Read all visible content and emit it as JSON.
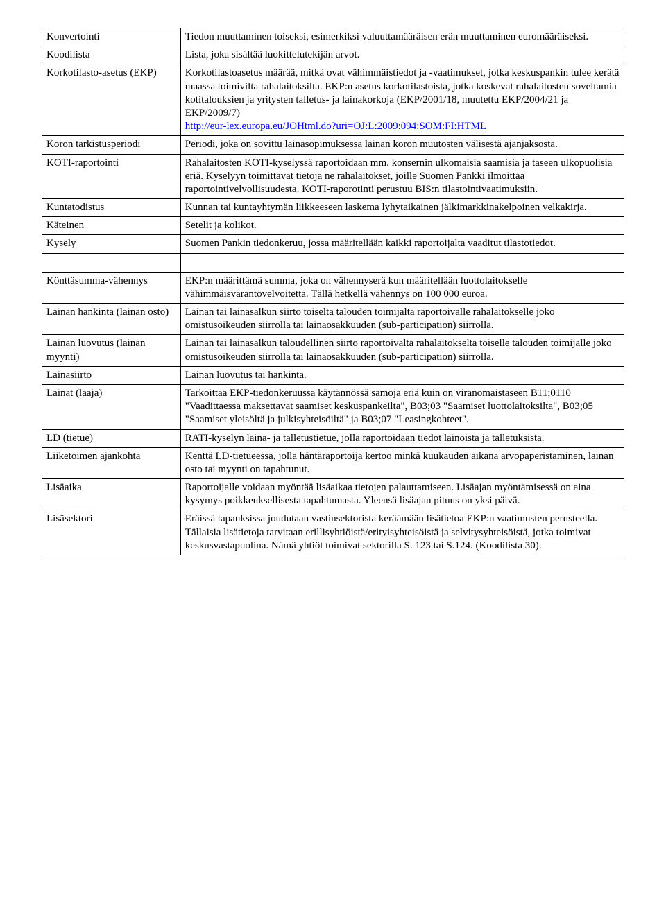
{
  "rows": [
    {
      "term": "Konvertointi",
      "def": "Tiedon muuttaminen toiseksi, esimerkiksi valuuttamääräisen erän muuttaminen euromääräiseksi."
    },
    {
      "term": "Koodilista",
      "def": "Lista, joka sisältää luokittelutekijän arvot."
    },
    {
      "term": "Korkotilasto-asetus (EKP)",
      "def_pre": "Korkotilastoasetus määrää, mitkä ovat vähimmäistiedot ja -vaatimukset, jotka keskuspankin tulee kerätä maassa toimivilta rahalaitoksilta. EKP:n asetus korkotilastoista, jotka koskevat rahalaitosten soveltamia kotitalouksien ja yritysten talletus- ja lainakorkoja (EKP/2001/18, muutettu EKP/2004/21 ja EKP/2009/7)",
      "link_text": "http://eur-lex.europa.eu/JOHtml.do?uri=OJ:L:2009:094:SOM:FI:HTML"
    },
    {
      "term": "Koron tarkistusperiodi",
      "def": "Periodi, joka on sovittu lainasopimuksessa lainan koron muutosten välisestä ajanjaksosta."
    },
    {
      "term": "KOTI-raportointi",
      "def": "Rahalaitosten KOTI-kyselyssä raportoidaan mm. konsernin ulkomaisia saamisia ja taseen ulkopuolisia eriä. Kyselyyn toimittavat tietoja ne rahalaitokset, joille Suomen Pankki ilmoittaa raportointivelvollisuudesta. KOTI-raporotinti perustuu BIS:n tilastointivaatimuksiin."
    },
    {
      "term": "Kuntatodistus",
      "def": "Kunnan tai kuntayhtymän liikkeeseen laskema lyhytaikainen jälkimarkkinakelpoinen velkakirja."
    },
    {
      "term": "Käteinen",
      "def": "Setelit ja kolikot."
    },
    {
      "term": "Kysely",
      "def": "Suomen Pankin tiedonkeruu, jossa määritellään kaikki raportoijalta vaaditut tilastotiedot."
    },
    {
      "empty": true
    },
    {
      "term": "Könttäsumma-vähennys",
      "def": "EKP:n määrittämä summa, joka on vähennyserä kun määritellään luottolaitokselle vähimmäisvarantovelvoitetta. Tällä hetkellä vähennys on 100 000 euroa."
    },
    {
      "term": "Lainan hankinta (lainan osto)",
      "def": "Lainan tai lainasalkun siirto toiselta talouden toimijalta raportoivalle rahalaitokselle joko omistusoikeuden siirrolla tai lainaosakkuuden (sub-participation) siirrolla."
    },
    {
      "term": "Lainan luovutus (lainan myynti)",
      "def": "Lainan tai lainasalkun taloudellinen siirto raportoivalta rahalaitokselta toiselle talouden toimijalle joko omistusoikeuden siirrolla tai lainaosakkuuden (sub-participation) siirrolla."
    },
    {
      "term": "Lainasiirto",
      "def": "Lainan luovutus tai hankinta."
    },
    {
      "term": "Lainat (laaja)",
      "def": "Tarkoittaa EKP-tiedonkeruussa käytännössä samoja eriä kuin on viranomaistaseen B11;0110 \"Vaadittaessa maksettavat saamiset keskuspankeilta\", B03;03 \"Saamiset luottolaitoksilta\", B03;05 \"Saamiset yleisöltä ja julkisyhteisöiltä\" ja B03;07 \"Leasingkohteet\"."
    },
    {
      "term": "LD (tietue)",
      "def": "RATI-kyselyn laina- ja talletustietue, jolla raportoidaan tiedot lainoista ja talletuksista."
    },
    {
      "term": "Liiketoimen ajankohta",
      "def": " Kenttä LD-tietueessa, jolla häntäraportoija kertoo minkä kuukauden aikana arvopaperistaminen, lainan osto tai myynti on tapahtunut."
    },
    {
      "term": "Lisäaika",
      "def": "Raportoijalle voidaan myöntää lisäaikaa tietojen palauttamiseen. Lisäajan myöntämisessä on aina kysymys poikkeuksellisesta tapahtumasta. Yleensä lisäajan pituus on yksi päivä."
    },
    {
      "term": "Lisäsektori",
      "def": "Eräissä tapauksissa joudutaan vastinsektorista keräämään lisätietoa EKP:n vaatimusten perusteella. Tällaisia lisätietoja tarvitaan erillisyhtiöistä/erityisyhteisöistä ja selvitysyhteisöistä, jotka toimivat keskusvastapuolina. Nämä yhtiöt toimivat sektorilla S. 123 tai S.124. (Koodilista 30)."
    }
  ]
}
